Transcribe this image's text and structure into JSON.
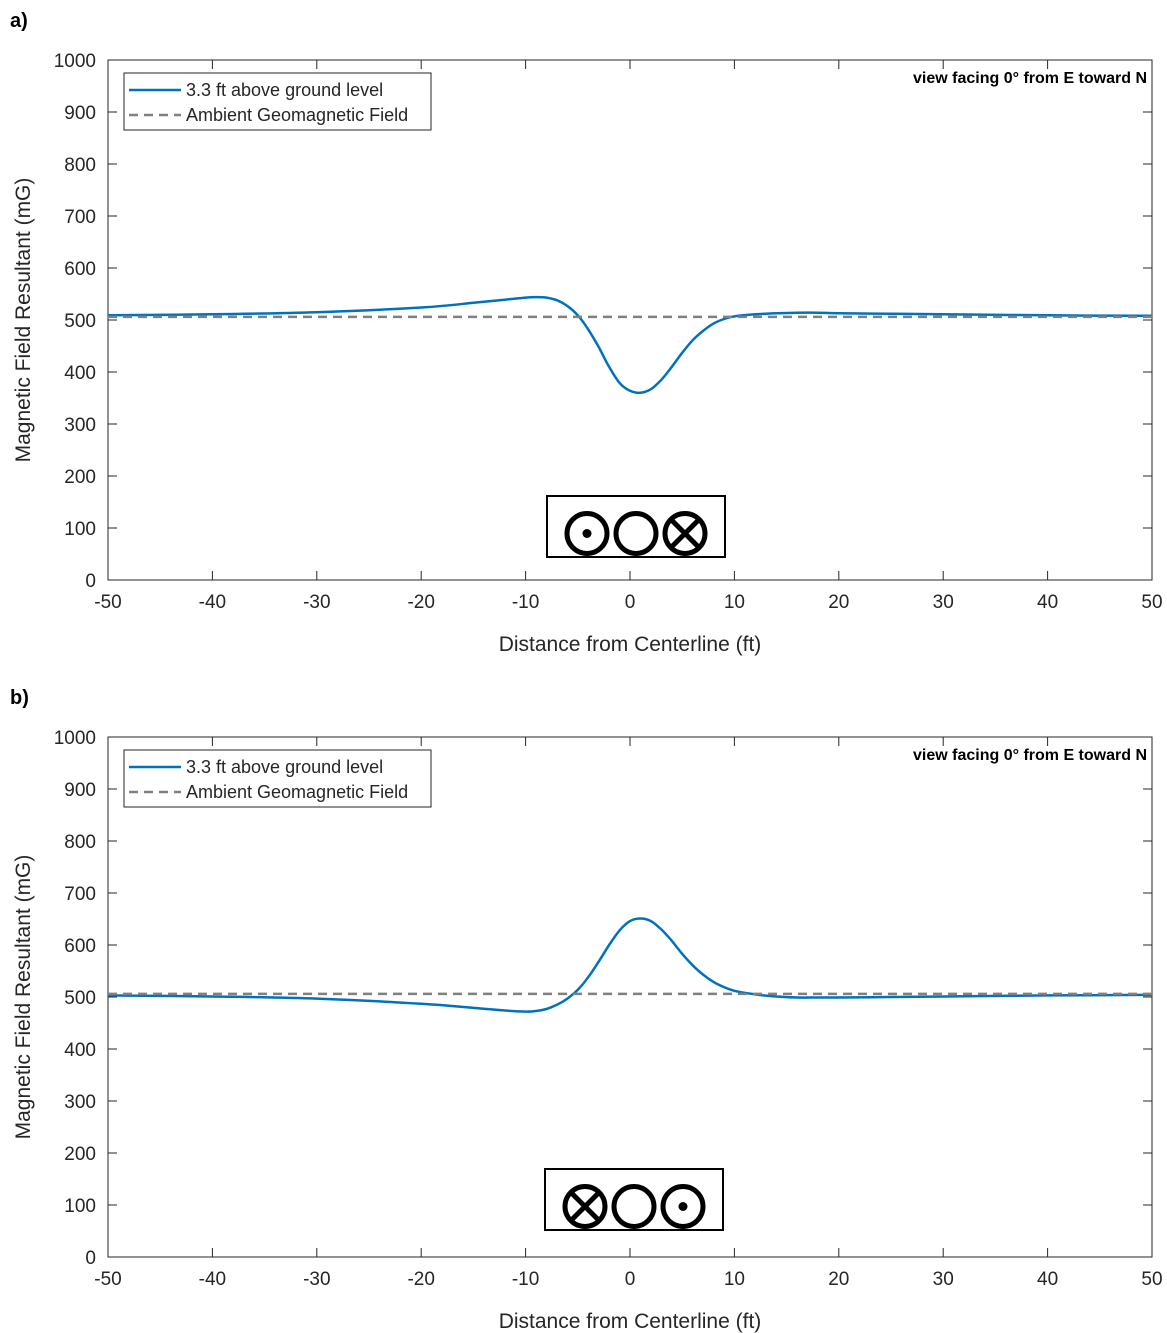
{
  "colors": {
    "series": "#0072BD",
    "ambient": "#808080",
    "axis": "#262626"
  },
  "chart_data": [
    {
      "panel_label": "a)",
      "type": "line",
      "xlabel": "Distance from Centerline (ft)",
      "ylabel": "Magnetic Field Resultant (mG)",
      "xlim": [
        -50,
        50
      ],
      "ylim": [
        0,
        1000
      ],
      "xticks": [
        -50,
        -40,
        -30,
        -20,
        -10,
        0,
        10,
        20,
        30,
        40,
        50
      ],
      "yticks": [
        0,
        100,
        200,
        300,
        400,
        500,
        600,
        700,
        800,
        900,
        1000
      ],
      "grid": false,
      "legend_position": "top-left",
      "annotation": "view facing 0° from E toward N",
      "conductor_symbols": [
        "dot",
        "circle",
        "cross"
      ],
      "series": [
        {
          "name": "3.3 ft above ground level",
          "style": "solid",
          "x": [
            -50,
            -40,
            -30,
            -20,
            -15,
            -12,
            -10,
            -9,
            -8,
            -7,
            -6,
            -5,
            -4,
            -3,
            -2,
            -1,
            0,
            1,
            2,
            3,
            4,
            5,
            6,
            7,
            8,
            9,
            10,
            12,
            14,
            16,
            18,
            20,
            25,
            30,
            40,
            50
          ],
          "y": [
            509,
            511,
            515,
            524,
            533,
            539,
            543,
            544,
            543,
            538,
            527,
            509,
            482,
            448,
            410,
            379,
            364,
            360,
            367,
            385,
            410,
            437,
            461,
            479,
            493,
            502,
            507,
            511,
            513,
            514,
            514,
            513,
            512,
            511,
            509,
            508
          ]
        },
        {
          "name": "Ambient Geomagnetic Field",
          "style": "dashed",
          "x": [
            -50,
            50
          ],
          "y": [
            506,
            506
          ]
        }
      ]
    },
    {
      "panel_label": "b)",
      "type": "line",
      "xlabel": "Distance from Centerline (ft)",
      "ylabel": "Magnetic Field Resultant (mG)",
      "xlim": [
        -50,
        50
      ],
      "ylim": [
        0,
        1000
      ],
      "xticks": [
        -50,
        -40,
        -30,
        -20,
        -10,
        0,
        10,
        20,
        30,
        40,
        50
      ],
      "yticks": [
        0,
        100,
        200,
        300,
        400,
        500,
        600,
        700,
        800,
        900,
        1000
      ],
      "grid": false,
      "legend_position": "top-left",
      "annotation": "view facing 0° from E toward N",
      "conductor_symbols": [
        "cross",
        "circle",
        "dot"
      ],
      "series": [
        {
          "name": "3.3 ft above ground level",
          "style": "solid",
          "x": [
            -50,
            -40,
            -30,
            -20,
            -15,
            -12,
            -10,
            -9,
            -8,
            -7,
            -6,
            -5,
            -4,
            -3,
            -2,
            -1,
            0,
            1,
            2,
            3,
            4,
            5,
            6,
            7,
            8,
            9,
            10,
            12,
            14,
            16,
            18,
            20,
            25,
            30,
            40,
            50
          ],
          "y": [
            503,
            501,
            497,
            487,
            479,
            474,
            472,
            473,
            477,
            485,
            497,
            514,
            538,
            568,
            600,
            628,
            646,
            651,
            646,
            630,
            608,
            583,
            561,
            543,
            529,
            519,
            512,
            505,
            501,
            499,
            499,
            499,
            500,
            501,
            503,
            504
          ]
        },
        {
          "name": "Ambient Geomagnetic Field",
          "style": "dashed",
          "x": [
            -50,
            50
          ],
          "y": [
            506,
            506
          ]
        }
      ]
    }
  ]
}
